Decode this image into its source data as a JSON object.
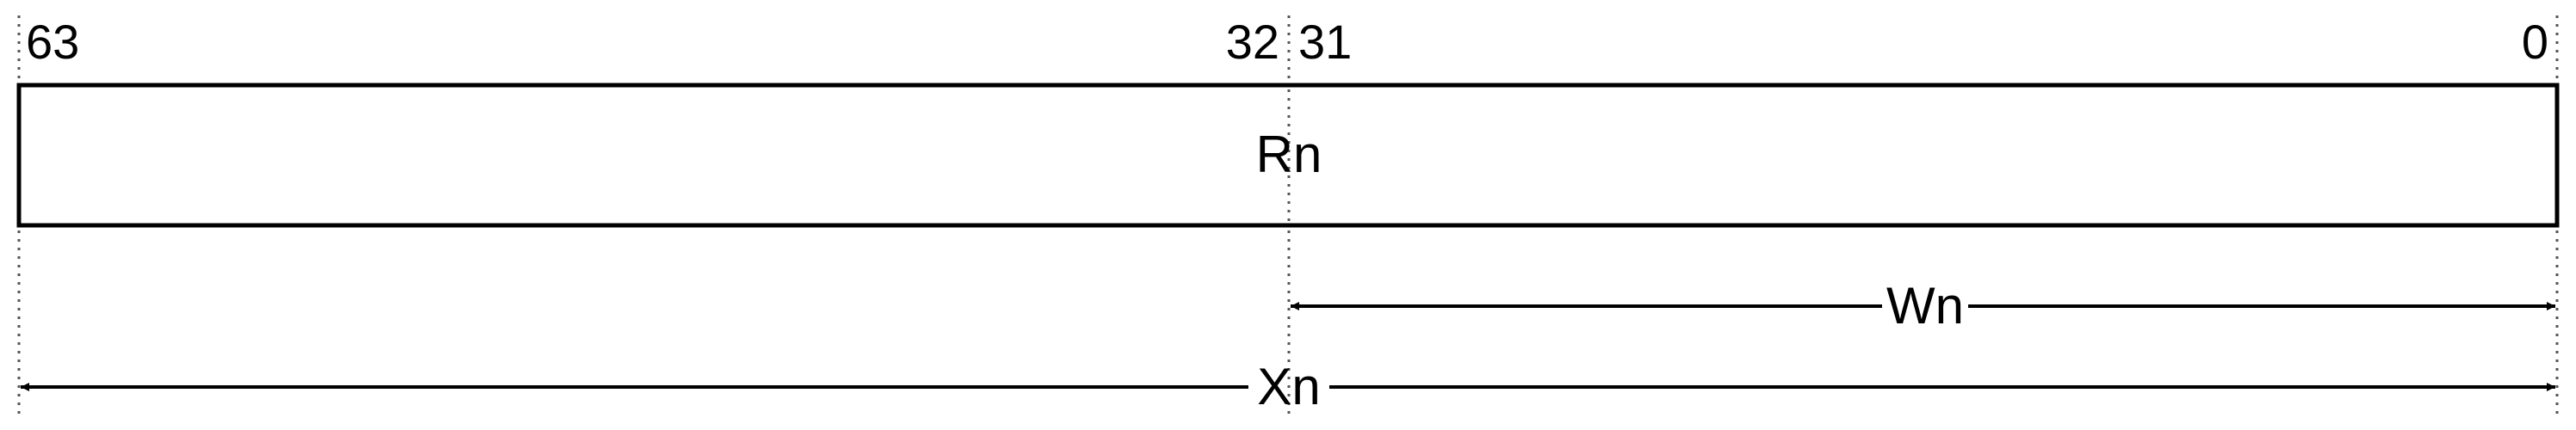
{
  "register": {
    "name": "Rn",
    "bit_labels": {
      "msb": "63",
      "upper_low": "32",
      "lower_high": "31",
      "lsb": "0"
    }
  },
  "views": {
    "word": {
      "label": "Wn"
    },
    "doubleword": {
      "label": "Xn"
    }
  },
  "colors": {
    "line": "#000000",
    "guide": "#555555",
    "background": "#ffffff"
  }
}
